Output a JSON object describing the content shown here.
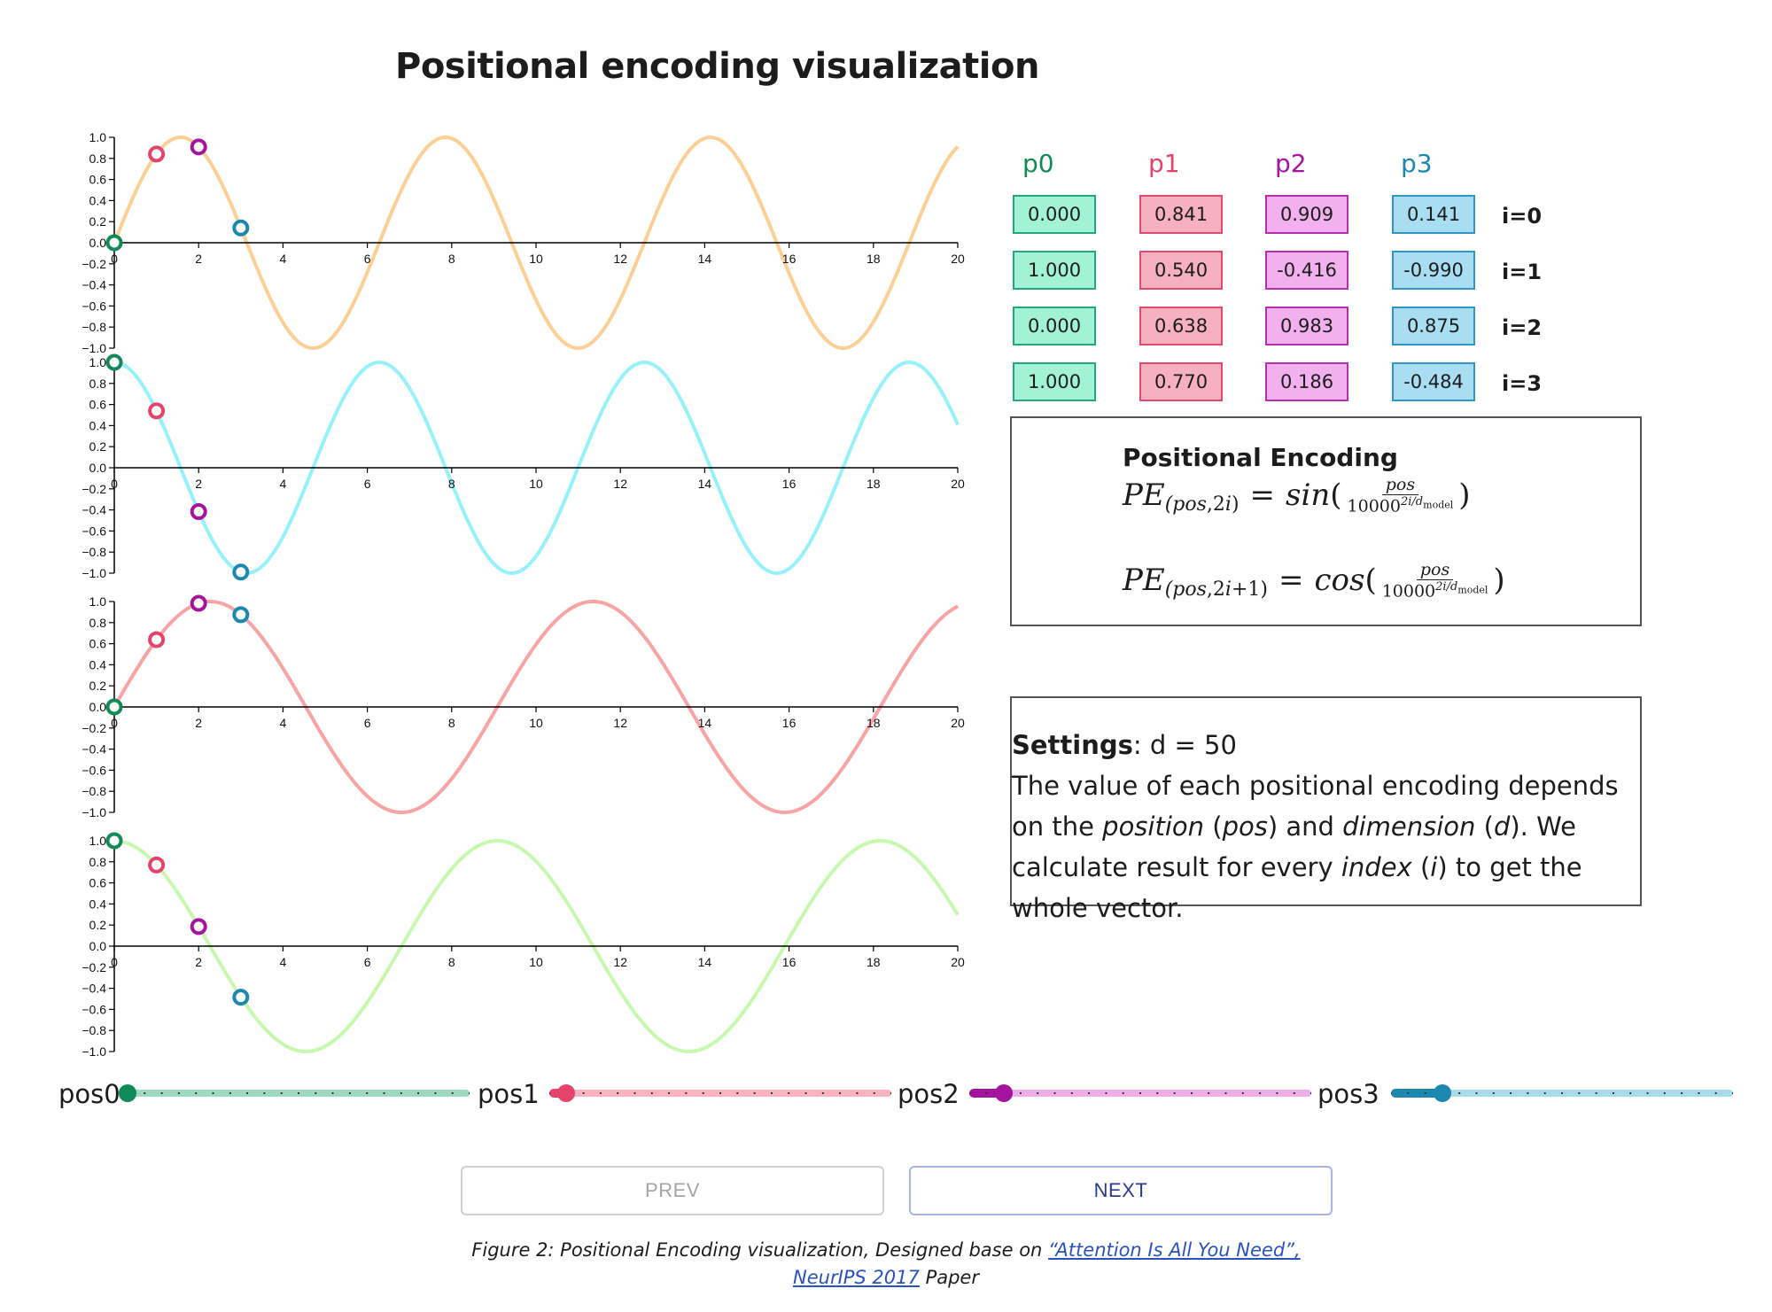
{
  "page": {
    "title": "Positional encoding visualization"
  },
  "settings": {
    "d": 50,
    "d_label": "d = 50",
    "heading": "Settings"
  },
  "positions": [
    0,
    1,
    2,
    3
  ],
  "position_colors": [
    "#118a5a",
    "#e5436a",
    "#a5149e",
    "#1c88b0"
  ],
  "table": {
    "columns": [
      "p0",
      "p1",
      "p2",
      "p3"
    ],
    "column_colors": [
      "#118a5a",
      "#e5436a",
      "#a5149e",
      "#1c88b0"
    ],
    "cell_fills": [
      "#a2f2d6",
      "#f6b0bf",
      "#f2b0ee",
      "#a8ddf2"
    ],
    "cell_borders": [
      "#22a87a",
      "#e24a70",
      "#b530ae",
      "#2d98c2"
    ],
    "rows": [
      {
        "label": "i=0",
        "values": [
          "0.000",
          "0.841",
          "0.909",
          "0.141"
        ]
      },
      {
        "label": "i=1",
        "values": [
          "1.000",
          "0.540",
          "-0.416",
          "-0.990"
        ]
      },
      {
        "label": "i=2",
        "values": [
          "0.000",
          "0.638",
          "0.983",
          "0.875"
        ]
      },
      {
        "label": "i=3",
        "values": [
          "1.000",
          "0.770",
          "0.186",
          "-0.484"
        ]
      }
    ]
  },
  "formula": {
    "title": "Positional Encoding",
    "numerator": "pos",
    "denominator_base": "10000",
    "denominator_exp": "2i/d",
    "denominator_sub": "model"
  },
  "description": {
    "t1": "The value of each positional encoding depends on the ",
    "position": "position",
    "t2": " (",
    "pos": "pos",
    "t3": ") and ",
    "dimension": "dimension",
    "t4": " (",
    "d": "d",
    "t5": "). We calculate result for every ",
    "index": "index",
    "t6": " (",
    "i": "i",
    "t7": ") to get the whole vector."
  },
  "chart_data": [
    {
      "type": "line",
      "function": "sin(pos / 10000^(0/50))",
      "x_range": [
        0,
        20
      ],
      "ylim": [
        -1,
        1
      ],
      "color": "#fccf94",
      "x_ticks": [
        0,
        2,
        4,
        6,
        8,
        10,
        12,
        14,
        16,
        18,
        20
      ],
      "y_ticks": [
        "1.0",
        "0.8",
        "0.6",
        "0.4",
        "0.2",
        "0.0",
        "−0.2",
        "−0.4",
        "−0.6",
        "−0.8",
        "−1.0"
      ],
      "points": [
        {
          "x": 0,
          "y": 0.0
        },
        {
          "x": 1,
          "y": 0.841
        },
        {
          "x": 2,
          "y": 0.909
        },
        {
          "x": 3,
          "y": 0.141
        }
      ]
    },
    {
      "type": "line",
      "function": "cos(pos / 10000^(0/50))",
      "x_range": [
        0,
        20
      ],
      "ylim": [
        -1,
        1
      ],
      "color": "#96f1fa",
      "x_ticks": [
        0,
        2,
        4,
        6,
        8,
        10,
        12,
        14,
        16,
        18,
        20
      ],
      "y_ticks": [
        "1.0",
        "0.8",
        "0.6",
        "0.4",
        "0.2",
        "0.0",
        "−0.2",
        "−0.4",
        "−0.6",
        "−0.8",
        "−1.0"
      ],
      "points": [
        {
          "x": 0,
          "y": 1.0
        },
        {
          "x": 1,
          "y": 0.54
        },
        {
          "x": 2,
          "y": -0.416
        },
        {
          "x": 3,
          "y": -0.99
        }
      ]
    },
    {
      "type": "line",
      "function": "sin(pos / 10000^(2/50))",
      "x_range": [
        0,
        20
      ],
      "ylim": [
        -1,
        1
      ],
      "color": "#f9a3a5",
      "x_ticks": [
        0,
        2,
        4,
        6,
        8,
        10,
        12,
        14,
        16,
        18,
        20
      ],
      "y_ticks": [
        "1.0",
        "0.8",
        "0.6",
        "0.4",
        "0.2",
        "0.0",
        "−0.2",
        "−0.4",
        "−0.6",
        "−0.8",
        "−1.0"
      ],
      "points": [
        {
          "x": 0,
          "y": 0.0
        },
        {
          "x": 1,
          "y": 0.638
        },
        {
          "x": 2,
          "y": 0.983
        },
        {
          "x": 3,
          "y": 0.875
        }
      ]
    },
    {
      "type": "line",
      "function": "cos(pos / 10000^(2/50))",
      "x_range": [
        0,
        20
      ],
      "ylim": [
        -1,
        1
      ],
      "color": "#c6f9ae",
      "x_ticks": [
        0,
        2,
        4,
        6,
        8,
        10,
        12,
        14,
        16,
        18,
        20
      ],
      "y_ticks": [
        "1.0",
        "0.8",
        "0.6",
        "0.4",
        "0.2",
        "0.0",
        "−0.2",
        "−0.4",
        "−0.6",
        "−0.8",
        "−1.0"
      ],
      "points": [
        {
          "x": 0,
          "y": 1.0
        },
        {
          "x": 1,
          "y": 0.77
        },
        {
          "x": 2,
          "y": 0.186
        },
        {
          "x": 3,
          "y": -0.484
        }
      ]
    }
  ],
  "sliders": [
    {
      "label": "pos0",
      "value": 0,
      "min": 0,
      "max": 20,
      "color": "#118a5a",
      "track": "#9fd9c0"
    },
    {
      "label": "pos1",
      "value": 1,
      "min": 0,
      "max": 20,
      "color": "#e5436a",
      "track": "#f7b3c2"
    },
    {
      "label": "pos2",
      "value": 2,
      "min": 0,
      "max": 20,
      "color": "#a5149e",
      "track": "#eeaee9"
    },
    {
      "label": "pos3",
      "value": 3,
      "min": 0,
      "max": 20,
      "color": "#1c88b0",
      "track": "#a8dae8"
    }
  ],
  "buttons": {
    "prev": "PREV",
    "next": "NEXT"
  },
  "caption": {
    "prefix": "Figure 2: Positional Encoding visualization, Designed base on ",
    "link": "“Attention Is All You Need”, NeurIPS 2017",
    "suffix": " Paper"
  }
}
